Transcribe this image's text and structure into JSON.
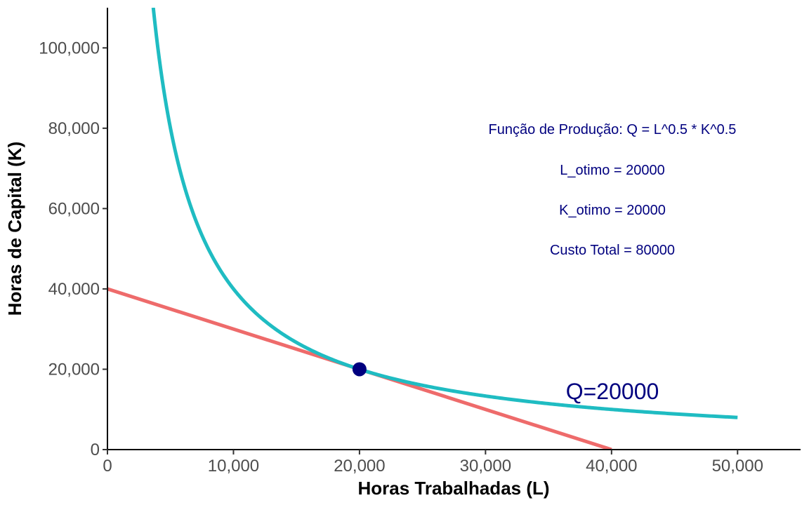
{
  "chart_data": {
    "type": "line",
    "xlabel": "Horas Trabalhadas (L)",
    "ylabel": "Horas de Capital (K)",
    "xlim": [
      0,
      55000
    ],
    "ylim": [
      0,
      110000
    ],
    "x_ticks": [
      0,
      10000,
      20000,
      30000,
      40000,
      50000
    ],
    "x_tick_labels": [
      "0",
      "10,000",
      "20,000",
      "30,000",
      "40,000",
      "50,000"
    ],
    "y_ticks": [
      0,
      20000,
      40000,
      60000,
      80000,
      100000
    ],
    "y_tick_labels": [
      "0",
      "20,000",
      "40,000",
      "60,000",
      "80,000",
      "100,000"
    ],
    "grid": false,
    "series": [
      {
        "kind": "isoquant",
        "equation": "K = 20000^2 / L",
        "Q": 20000,
        "x_range": [
          3636,
          50000
        ],
        "color": "#1fbcc2"
      },
      {
        "kind": "isocost",
        "equation": "K = 40000 - L",
        "x_range": [
          0,
          40000
        ],
        "color": "#ee6b6b"
      }
    ],
    "points": [
      {
        "x": 20000,
        "y": 20000,
        "color": "#00007f"
      }
    ],
    "annotations": [
      {
        "text": "Função de Produção: Q = L^0.5 * K^0.5",
        "x": 40000,
        "y": 80000
      },
      {
        "text": "L_otimo = 20000",
        "x": 40000,
        "y": 70000
      },
      {
        "text": "K_otimo = 20000",
        "x": 40000,
        "y": 60000
      },
      {
        "text": "Custo Total = 80000",
        "x": 40000,
        "y": 50000
      }
    ],
    "curve_label": {
      "text": "Q=20000",
      "x": 40000,
      "y": 14500
    },
    "annotation_color": "#00007f"
  }
}
